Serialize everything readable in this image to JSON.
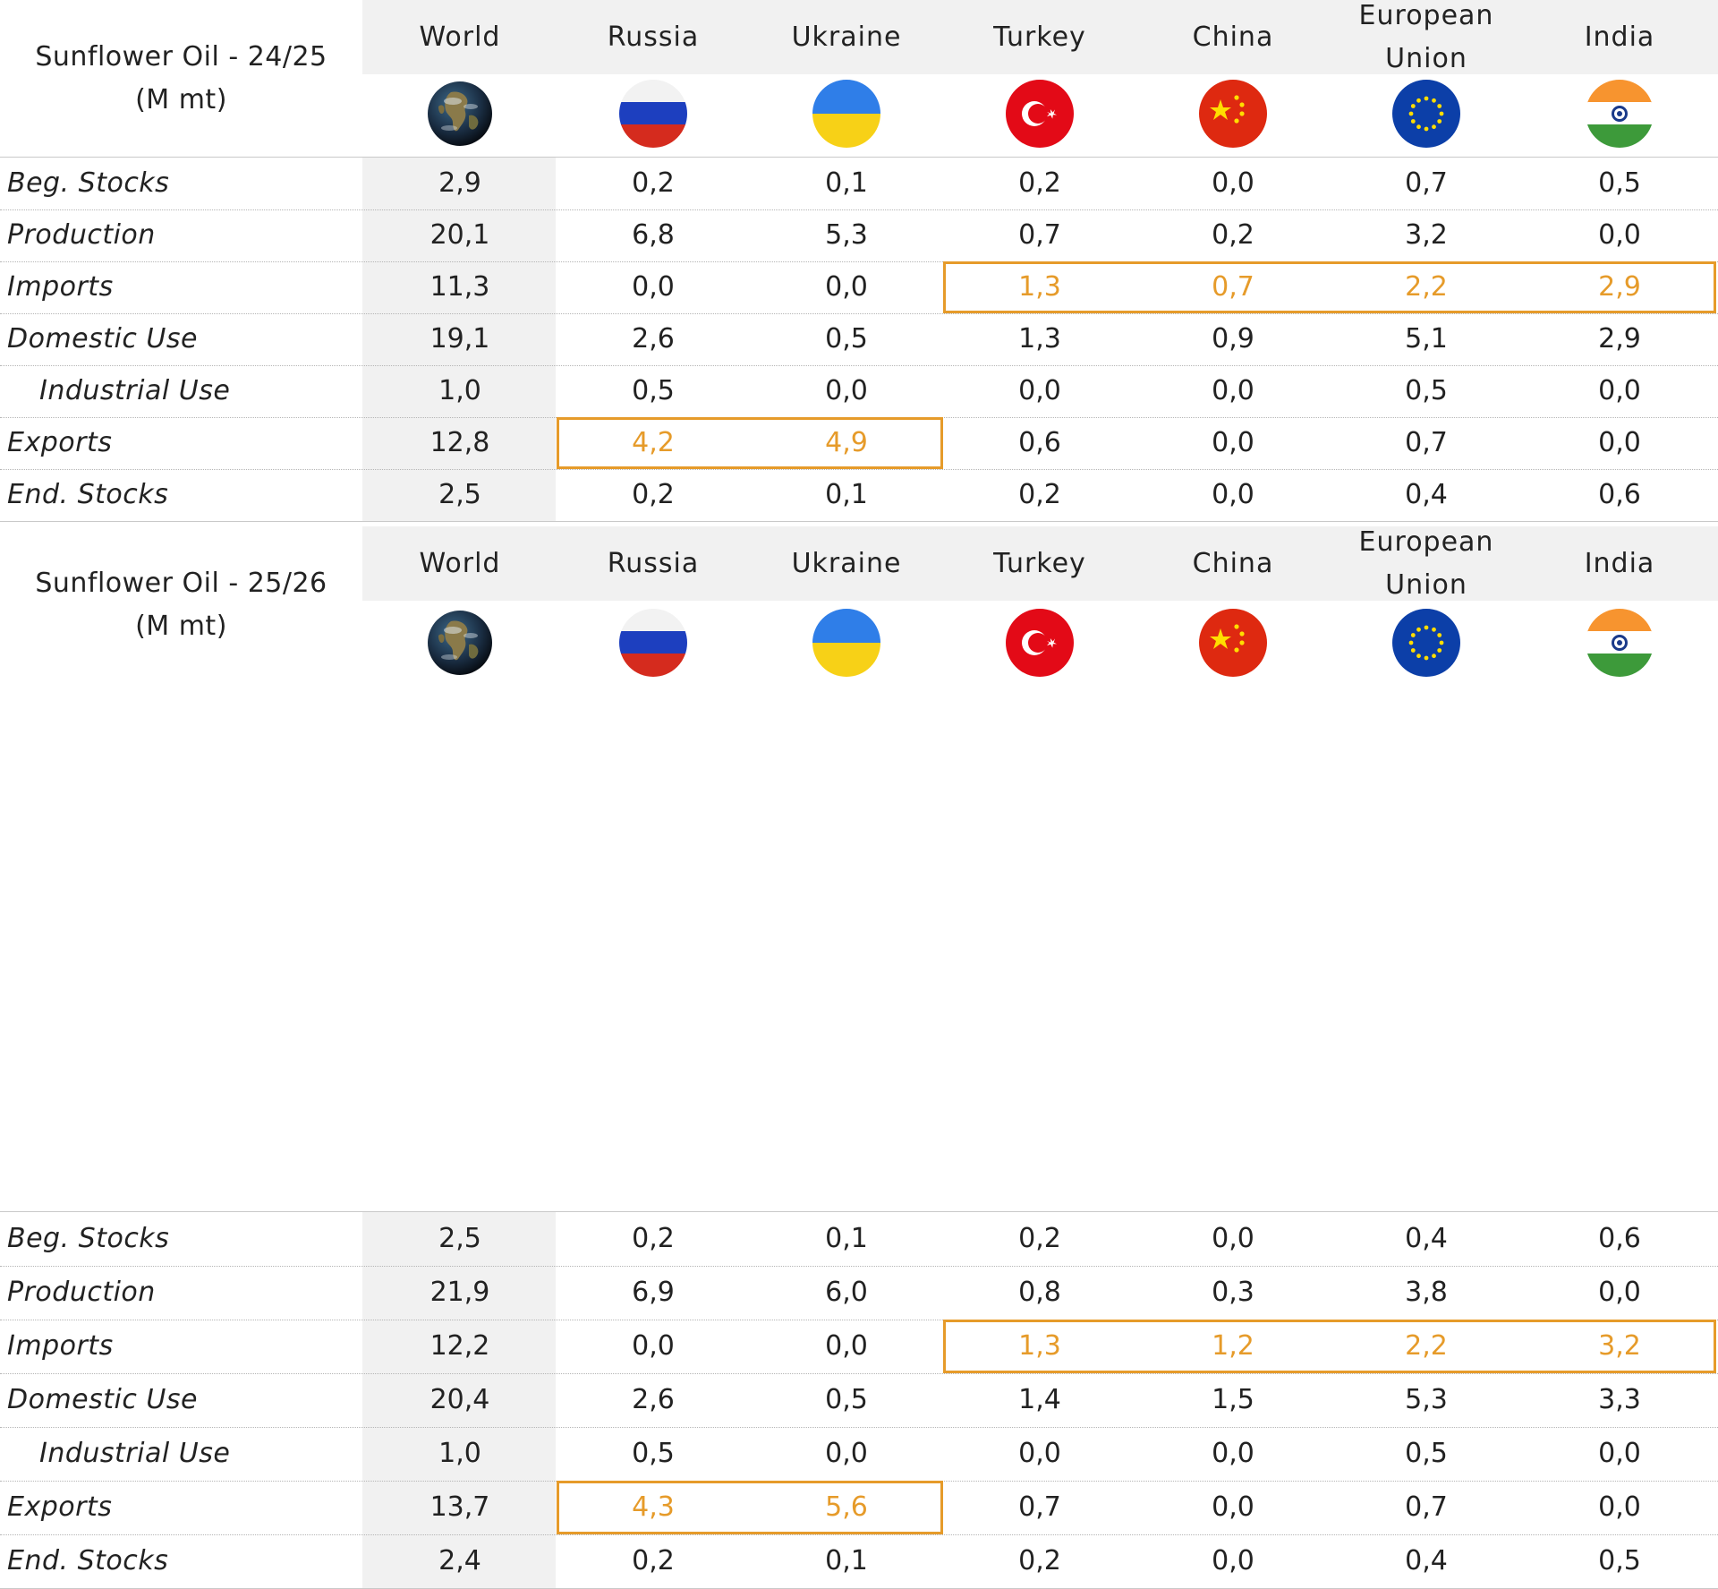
{
  "chart_data": [
    {
      "type": "table",
      "title_lines": [
        "Sunflower Oil - 24/25",
        "(M mt)"
      ],
      "columns": [
        "World",
        "Russia",
        "Ukraine",
        "Turkey",
        "China",
        "European Union",
        "India"
      ],
      "column_lines": [
        [
          "World"
        ],
        [
          "Russia"
        ],
        [
          "Ukraine"
        ],
        [
          "Turkey"
        ],
        [
          "China"
        ],
        [
          "European",
          "Union"
        ],
        [
          "India"
        ]
      ],
      "flags": [
        "globe-icon",
        "russia-flag-icon",
        "ukraine-flag-icon",
        "turkey-flag-icon",
        "china-flag-icon",
        "eu-flag-icon",
        "india-flag-icon"
      ],
      "rows": [
        {
          "label": "Beg. Stocks",
          "indent": false,
          "values": [
            "2,9",
            "0,2",
            "0,1",
            "0,2",
            "0,0",
            "0,7",
            "0,5"
          ]
        },
        {
          "label": "Production",
          "indent": false,
          "values": [
            "20,1",
            "6,8",
            "5,3",
            "0,7",
            "0,2",
            "3,2",
            "0,0"
          ]
        },
        {
          "label": "Imports",
          "indent": false,
          "values": [
            "11,3",
            "0,0",
            "0,0",
            "1,3",
            "0,7",
            "2,2",
            "2,9"
          ]
        },
        {
          "label": "Domestic Use",
          "indent": false,
          "values": [
            "19,1",
            "2,6",
            "0,5",
            "1,3",
            "0,9",
            "5,1",
            "2,9"
          ]
        },
        {
          "label": "Industrial Use",
          "indent": true,
          "values": [
            "1,0",
            "0,5",
            "0,0",
            "0,0",
            "0,0",
            "0,5",
            "0,0"
          ]
        },
        {
          "label": "Exports",
          "indent": false,
          "values": [
            "12,8",
            "4,2",
            "4,9",
            "0,6",
            "0,0",
            "0,7",
            "0,0"
          ]
        },
        {
          "label": "End. Stocks",
          "indent": false,
          "values": [
            "2,5",
            "0,2",
            "0,1",
            "0,2",
            "0,0",
            "0,4",
            "0,6"
          ]
        }
      ],
      "highlights": [
        {
          "row": 2,
          "from_col": 3,
          "to_col": 6
        },
        {
          "row": 5,
          "from_col": 1,
          "to_col": 2
        }
      ],
      "highlight_color": "#e69b2a"
    },
    {
      "type": "table",
      "title_lines": [
        "Sunflower Oil - 25/26",
        "(M mt)"
      ],
      "columns": [
        "World",
        "Russia",
        "Ukraine",
        "Turkey",
        "China",
        "European Union",
        "India"
      ],
      "column_lines": [
        [
          "World"
        ],
        [
          "Russia"
        ],
        [
          "Ukraine"
        ],
        [
          "Turkey"
        ],
        [
          "China"
        ],
        [
          "European",
          "Union"
        ],
        [
          "India"
        ]
      ],
      "flags": [
        "globe-icon",
        "russia-flag-icon",
        "ukraine-flag-icon",
        "turkey-flag-icon",
        "china-flag-icon",
        "eu-flag-icon",
        "india-flag-icon"
      ],
      "rows": [
        {
          "label": "Beg. Stocks",
          "indent": false,
          "values": [
            "2,5",
            "0,2",
            "0,1",
            "0,2",
            "0,0",
            "0,4",
            "0,6"
          ]
        },
        {
          "label": "Production",
          "indent": false,
          "values": [
            "21,9",
            "6,9",
            "6,0",
            "0,8",
            "0,3",
            "3,8",
            "0,0"
          ]
        },
        {
          "label": "Imports",
          "indent": false,
          "values": [
            "12,2",
            "0,0",
            "0,0",
            "1,3",
            "1,2",
            "2,2",
            "3,2"
          ]
        },
        {
          "label": "Domestic Use",
          "indent": false,
          "values": [
            "20,4",
            "2,6",
            "0,5",
            "1,4",
            "1,5",
            "5,3",
            "3,3"
          ]
        },
        {
          "label": "Industrial Use",
          "indent": true,
          "values": [
            "1,0",
            "0,5",
            "0,0",
            "0,0",
            "0,0",
            "0,5",
            "0,0"
          ]
        },
        {
          "label": "Exports",
          "indent": false,
          "values": [
            "13,7",
            "4,3",
            "5,6",
            "0,7",
            "0,0",
            "0,7",
            "0,0"
          ]
        },
        {
          "label": "End. Stocks",
          "indent": false,
          "values": [
            "2,4",
            "0,2",
            "0,1",
            "0,2",
            "0,0",
            "0,4",
            "0,5"
          ]
        }
      ],
      "highlights": [
        {
          "row": 2,
          "from_col": 3,
          "to_col": 6
        },
        {
          "row": 5,
          "from_col": 1,
          "to_col": 2
        }
      ],
      "highlight_color": "#e69b2a"
    }
  ],
  "colors": {
    "header_gray": "#f1f1f1",
    "text": "#222222",
    "highlight": "#e69b2a",
    "russia_white": "#f2f2f2",
    "russia_blue": "#1d3fbf",
    "russia_red": "#d52b1e",
    "ukraine_blue": "#2f7ee8",
    "ukraine_yellow": "#f7d117",
    "turkey_red": "#e30a17",
    "china_red": "#de2910",
    "china_yellow": "#ffde00",
    "eu_blue": "#0c3fa8",
    "eu_yellow": "#ffdd00",
    "india_saffron": "#f7942f",
    "india_green": "#3d9a3a",
    "india_navy": "#1a3a8a"
  }
}
